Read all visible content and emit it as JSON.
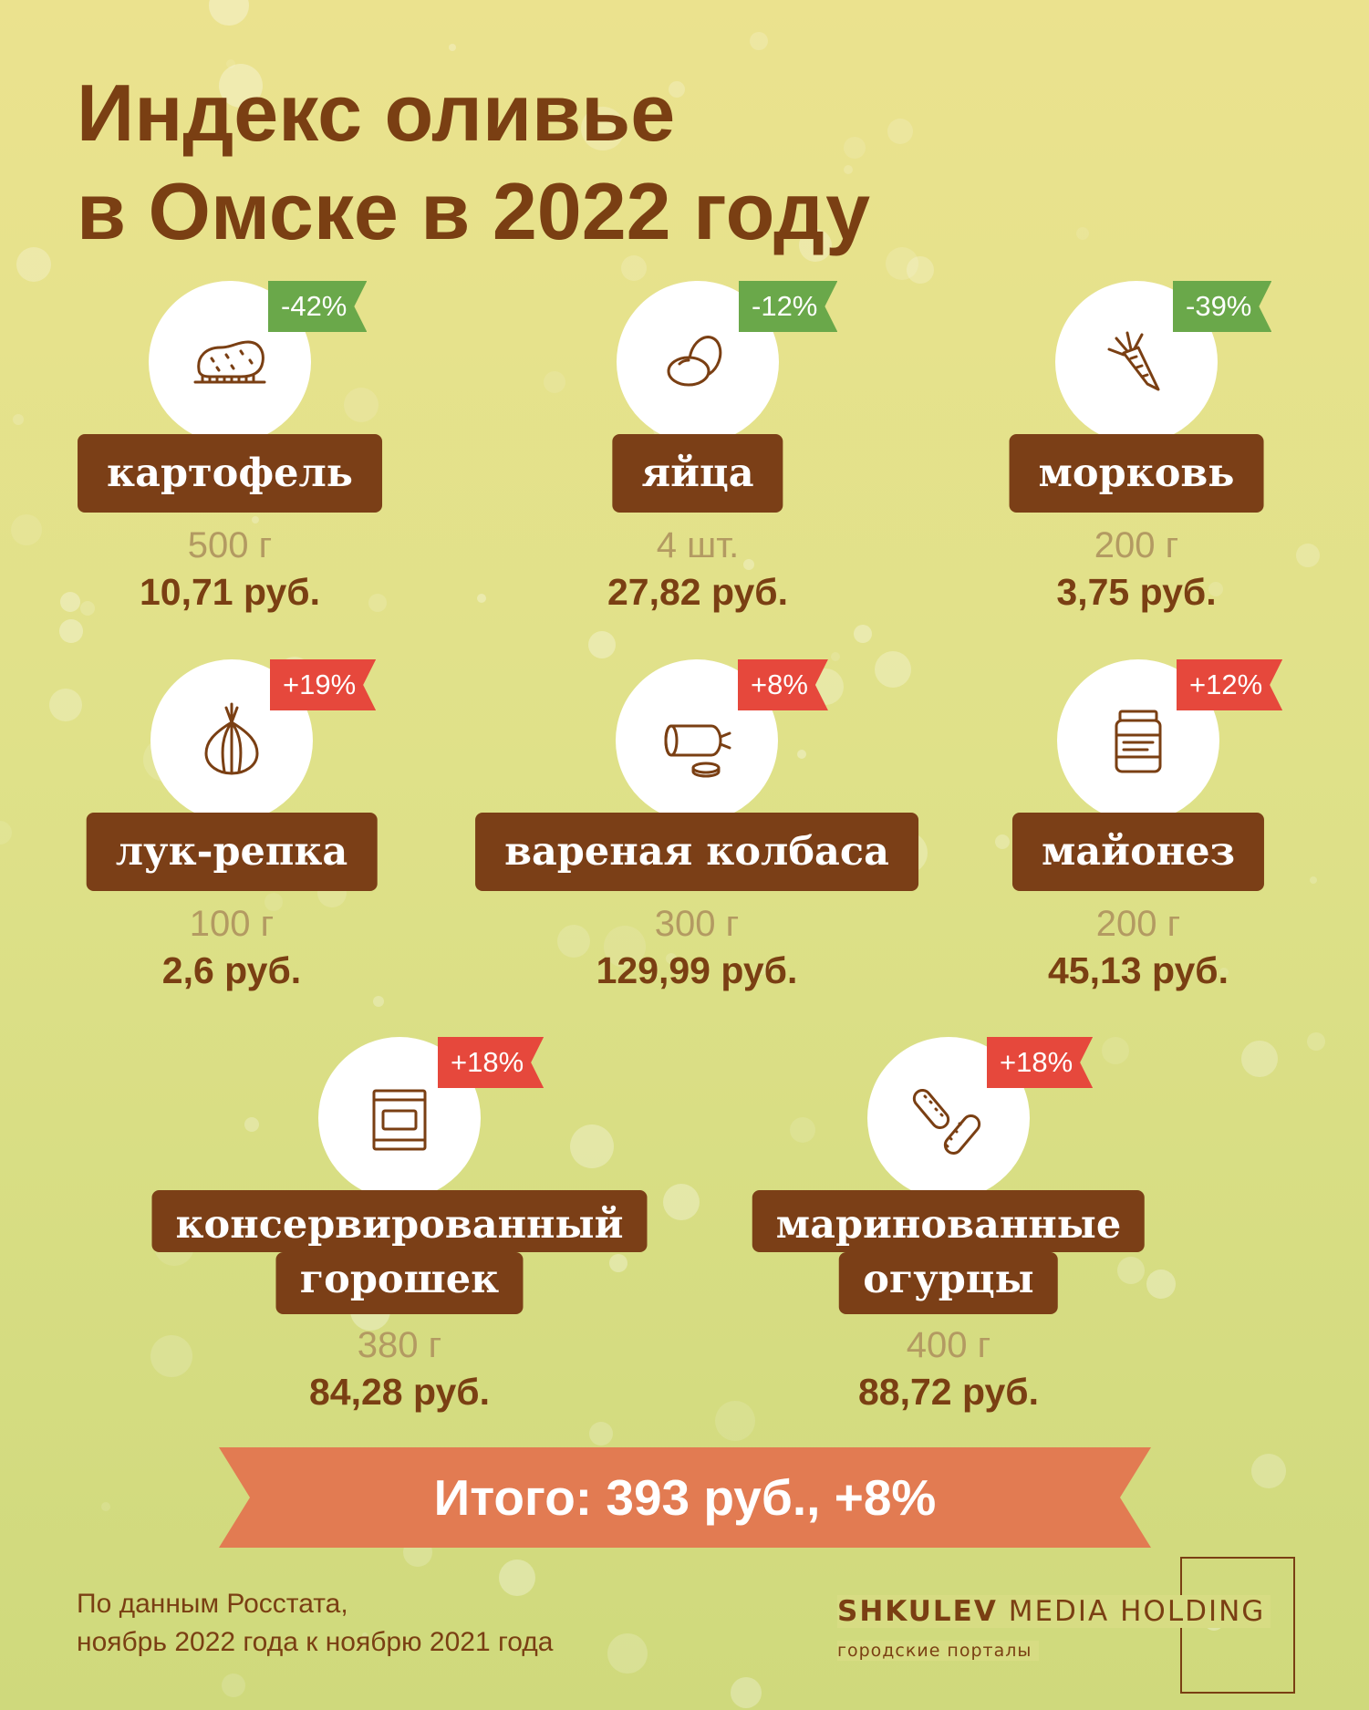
{
  "title": {
    "line1": "Индекс оливье",
    "line2": "в Омске в 2022 году"
  },
  "items": [
    {
      "name": [
        "картофель"
      ],
      "amount": "500 г",
      "price": "10,71 руб.",
      "change": "-42%",
      "icon": "potato-icon"
    },
    {
      "name": [
        "яйца"
      ],
      "amount": "4 шт.",
      "price": "27,82 руб.",
      "change": "-12%",
      "icon": "eggs-icon"
    },
    {
      "name": [
        "морковь"
      ],
      "amount": "200 г",
      "price": "3,75 руб.",
      "change": "-39%",
      "icon": "carrot-icon"
    },
    {
      "name": [
        "лук-репка"
      ],
      "amount": "100 г",
      "price": "2,6 руб.",
      "change": "+19%",
      "icon": "onion-icon"
    },
    {
      "name": [
        "вареная колбаса"
      ],
      "amount": "300 г",
      "price": "129,99 руб.",
      "change": "+8%",
      "icon": "sausage-icon"
    },
    {
      "name": [
        "майонез"
      ],
      "amount": "200 г",
      "price": "45,13 руб.",
      "change": "+12%",
      "icon": "mayonnaise-jar-icon"
    },
    {
      "name": [
        "консервированный",
        "горошек"
      ],
      "amount": "380 г",
      "price": "84,28 руб.",
      "change": "+18%",
      "icon": "canned-peas-icon"
    },
    {
      "name": [
        "маринованные",
        "огурцы"
      ],
      "amount": "400 г",
      "price": "88,72 руб.",
      "change": "+18%",
      "icon": "pickles-icon"
    }
  ],
  "total": "Итого: 393 руб., +8%",
  "source": {
    "line1": "По данным Росстата,",
    "line2": "ноябрь 2022 года к ноябрю 2021 года"
  },
  "logo": {
    "brand": "SHKULEV",
    "rest": "MEDIA HOLDING",
    "sub": "городские порталы"
  },
  "colors": {
    "brown": "#7b3f17",
    "badge_down": "#6aa84a",
    "badge_up": "#e6483c",
    "total_banner": "#e27b52",
    "background": "#e3e08a"
  }
}
